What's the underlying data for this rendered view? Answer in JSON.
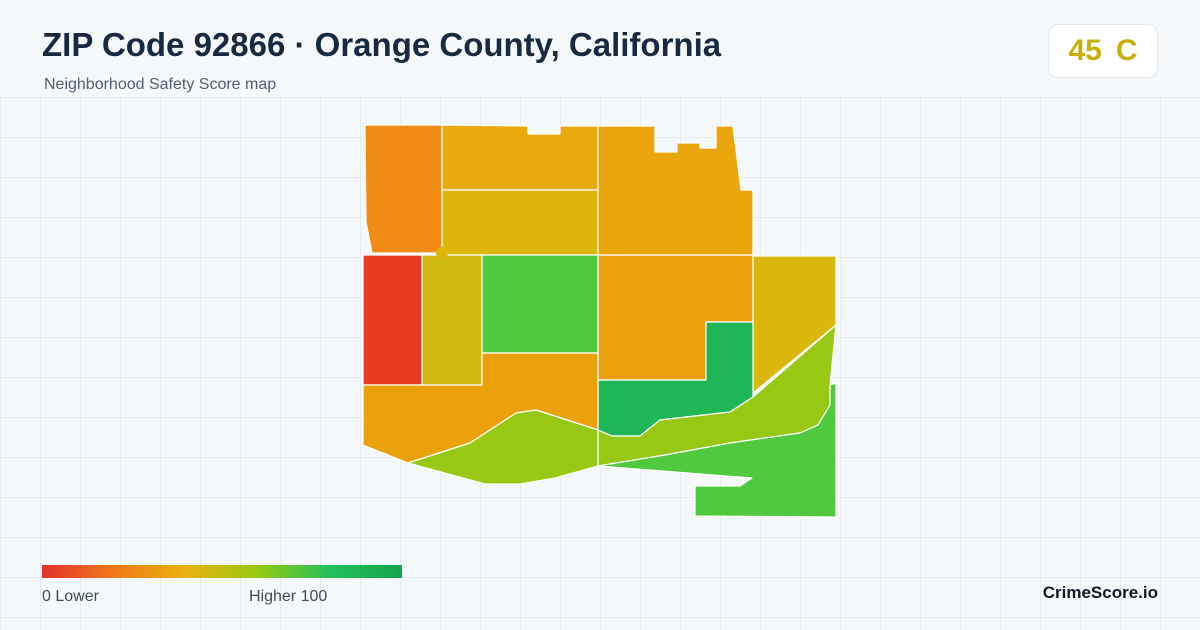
{
  "header": {
    "title": "ZIP Code 92866 · Orange County, California",
    "subtitle": "Neighborhood Safety Score map"
  },
  "score": {
    "value": "45",
    "grade": "C",
    "color": "#c9b10c"
  },
  "map": {
    "regions": [
      {
        "name": "region-northwest",
        "score": 30,
        "color": "#f08b15"
      },
      {
        "name": "region-north-central",
        "score": 42,
        "color": "#e8aa0d"
      },
      {
        "name": "region-north-central-lower",
        "score": 48,
        "color": "#dcb60b"
      },
      {
        "name": "region-northeast",
        "score": 40,
        "color": "#eaa60c"
      },
      {
        "name": "region-west",
        "score": 5,
        "color": "#e63b22"
      },
      {
        "name": "region-west-central",
        "score": 50,
        "color": "#cfb910"
      },
      {
        "name": "region-central",
        "score": 80,
        "color": "#4fc93d"
      },
      {
        "name": "region-center-east",
        "score": 38,
        "color": "#eba10c"
      },
      {
        "name": "region-east",
        "score": 48,
        "color": "#d9b70d"
      },
      {
        "name": "region-southeast-inner",
        "score": 92,
        "color": "#1fb657"
      },
      {
        "name": "region-southwest",
        "score": 38,
        "color": "#eba10c"
      },
      {
        "name": "region-south",
        "score": 65,
        "color": "#97c914"
      },
      {
        "name": "region-southeast-band",
        "score": 65,
        "color": "#97c914"
      },
      {
        "name": "region-southeast",
        "score": 80,
        "color": "#4fc93d"
      }
    ]
  },
  "legend": {
    "min_label": "0  Lower",
    "max_label": "Higher  100",
    "gradient": [
      "#e3312a",
      "#ef7a18",
      "#eab20e",
      "#97c914",
      "#22c05a",
      "#16a34a"
    ]
  },
  "brand": "CrimeScore.io"
}
